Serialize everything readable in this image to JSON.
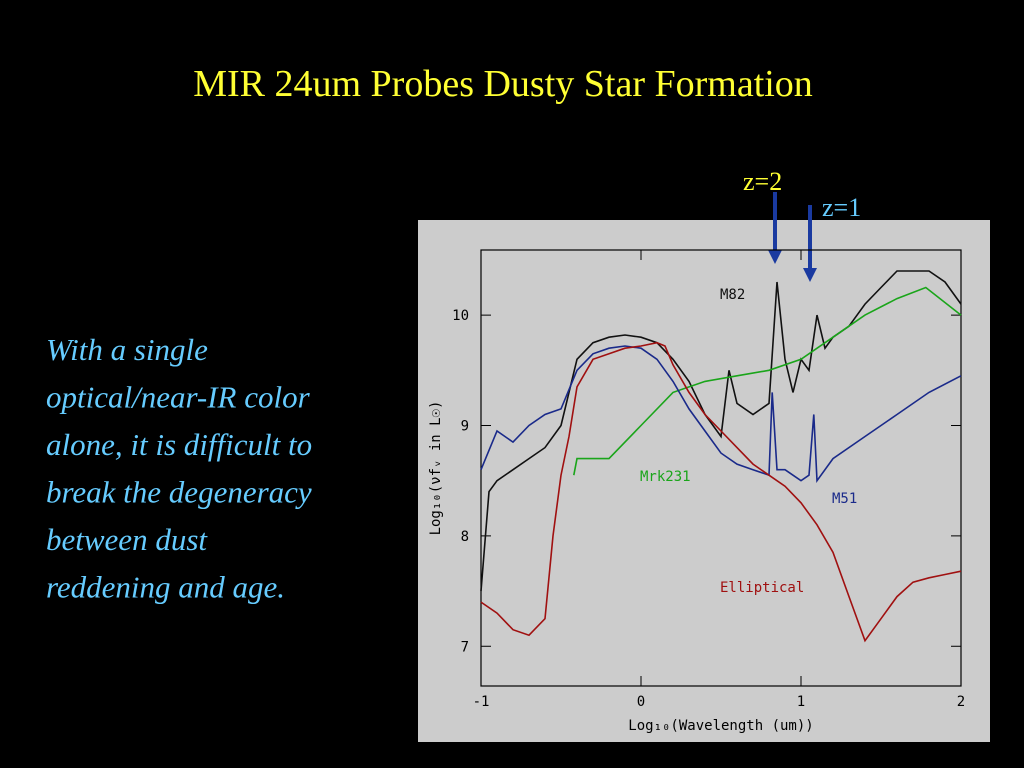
{
  "slide": {
    "title": "MIR 24um Probes Dusty Star Formation",
    "body": [
      "With a single",
      "optical/near-IR color",
      "alone, it is difficult to",
      "break the degeneracy",
      "between dust",
      "reddening and age."
    ],
    "annotations": [
      "z=2",
      "z=1"
    ]
  },
  "chart_data": {
    "type": "line",
    "xlabel": "Log₁₀(Wavelength (um))",
    "ylabel": "Log₁₀(νfᵥ in L☉)",
    "xlim": [
      -1,
      2
    ],
    "ylim": [
      6.64,
      10.59
    ],
    "xticks": [
      -1,
      0,
      1,
      2
    ],
    "yticks": [
      7,
      8,
      9,
      10
    ],
    "series": [
      {
        "name": "M82",
        "color": "#111111",
        "x": [
          -1,
          -0.95,
          -0.9,
          -0.8,
          -0.7,
          -0.6,
          -0.5,
          -0.45,
          -0.4,
          -0.3,
          -0.2,
          -0.1,
          0,
          0.1,
          0.2,
          0.3,
          0.4,
          0.5,
          0.55,
          0.6,
          0.7,
          0.8,
          0.85,
          0.9,
          0.95,
          1.0,
          1.05,
          1.1,
          1.15,
          1.2,
          1.3,
          1.4,
          1.5,
          1.6,
          1.8,
          1.9,
          2.0
        ],
        "values": [
          7.5,
          8.4,
          8.5,
          8.6,
          8.7,
          8.8,
          9.0,
          9.3,
          9.6,
          9.75,
          9.8,
          9.82,
          9.8,
          9.75,
          9.6,
          9.4,
          9.1,
          8.9,
          9.5,
          9.2,
          9.1,
          9.2,
          10.3,
          9.6,
          9.3,
          9.6,
          9.5,
          10.0,
          9.7,
          9.8,
          9.9,
          10.1,
          10.25,
          10.4,
          10.4,
          10.3,
          10.1
        ]
      },
      {
        "name": "Mrk231",
        "color": "#1aa51a",
        "x": [
          -0.42,
          -0.4,
          -0.2,
          0,
          0.2,
          0.4,
          0.6,
          0.8,
          1.0,
          1.2,
          1.4,
          1.6,
          1.78,
          2.0
        ],
        "values": [
          8.55,
          8.7,
          8.7,
          9.0,
          9.3,
          9.4,
          9.45,
          9.5,
          9.6,
          9.8,
          10.0,
          10.15,
          10.25,
          10.0
        ]
      },
      {
        "name": "M51",
        "color": "#1a2a8a",
        "x": [
          -1,
          -0.9,
          -0.8,
          -0.7,
          -0.6,
          -0.5,
          -0.4,
          -0.3,
          -0.2,
          -0.1,
          0,
          0.1,
          0.2,
          0.3,
          0.4,
          0.5,
          0.6,
          0.7,
          0.8,
          0.82,
          0.85,
          0.9,
          0.95,
          1.0,
          1.05,
          1.08,
          1.1,
          1.2,
          1.4,
          1.6,
          1.8,
          2.0
        ],
        "values": [
          8.6,
          8.95,
          8.85,
          9.0,
          9.1,
          9.15,
          9.5,
          9.65,
          9.7,
          9.72,
          9.7,
          9.6,
          9.4,
          9.15,
          8.95,
          8.75,
          8.65,
          8.6,
          8.55,
          9.3,
          8.6,
          8.6,
          8.55,
          8.5,
          8.55,
          9.1,
          8.5,
          8.7,
          8.9,
          9.1,
          9.3,
          9.45
        ]
      },
      {
        "name": "Elliptical",
        "color": "#a01010",
        "x": [
          -1,
          -0.9,
          -0.8,
          -0.7,
          -0.6,
          -0.55,
          -0.5,
          -0.45,
          -0.4,
          -0.3,
          -0.2,
          -0.1,
          0,
          0.1,
          0.15,
          0.2,
          0.3,
          0.4,
          0.5,
          0.6,
          0.7,
          0.8,
          0.9,
          1.0,
          1.1,
          1.2,
          1.3,
          1.4,
          1.5,
          1.6,
          1.7,
          1.8,
          1.9,
          2.0
        ],
        "values": [
          7.4,
          7.3,
          7.15,
          7.1,
          7.25,
          8.0,
          8.55,
          8.9,
          9.35,
          9.6,
          9.65,
          9.7,
          9.72,
          9.75,
          9.72,
          9.55,
          9.3,
          9.1,
          8.95,
          8.8,
          8.65,
          8.55,
          8.45,
          8.3,
          8.1,
          7.85,
          7.45,
          7.05,
          7.25,
          7.45,
          7.58,
          7.62,
          7.65,
          7.68
        ]
      }
    ]
  }
}
